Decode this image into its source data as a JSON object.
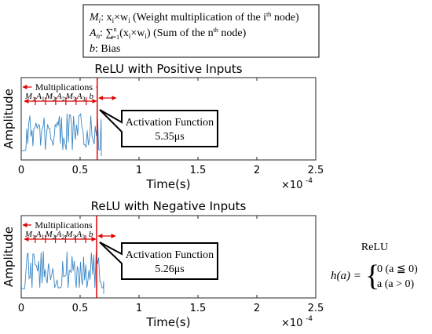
{
  "legend": {
    "line1": {
      "symbol": "M",
      "sub": "i",
      "text": ": x",
      "text_sub": "i",
      "tail": "×w",
      "tail_sub": "i",
      "desc": " (Weight multiplication of the i",
      "sup": "th",
      "end": " node)"
    },
    "line2": {
      "symbol": "A",
      "sub": "n",
      "text": ": ∑",
      "sum_sup": "n",
      "sum_sub": "i=1",
      "expr": "(x",
      "expr_sub": "i",
      "expr2": "×w",
      "expr2_sub": "i",
      "expr3": ")",
      "desc": " (Sum of the n",
      "sup": "th",
      "end": " node)"
    },
    "line3": {
      "symbol": "b",
      "desc": ": Bias"
    }
  },
  "formula": {
    "title": "ReLU",
    "lhs": "h(a) =",
    "case1": "0 (a ≦ 0)",
    "case2": "a (a > 0)"
  },
  "colors": {
    "signal": "#3b87c5",
    "marker": "#e00000",
    "axis": "#262626"
  },
  "chart_data": [
    {
      "type": "line",
      "title": "ReLU with Positive Inputs",
      "xlabel": "Time(s)",
      "ylabel": "Amplitude",
      "xlim": [
        0,
        2.5
      ],
      "x_exponent_label": "×10",
      "x_exponent": "-4",
      "xticks": [
        "0",
        "0.5",
        "1",
        "1.5",
        "2",
        "2.5"
      ],
      "grid": false,
      "activation_end": 0.645,
      "signal_end": 0.68,
      "bracket_label": "Multiplications",
      "segments": [
        "M1",
        "A1",
        "M2",
        "A2",
        "M3",
        "A3",
        "b"
      ],
      "callout": {
        "title": "Activation Function",
        "value": "5.35μs"
      }
    },
    {
      "type": "line",
      "title": "ReLU with Negative Inputs",
      "xlabel": "Time(s)",
      "ylabel": "Amplitude",
      "xlim": [
        0,
        2.5
      ],
      "x_exponent_label": "×10",
      "x_exponent": "-4",
      "xticks": [
        "0",
        "0.5",
        "1",
        "1.5",
        "2",
        "2.5"
      ],
      "grid": false,
      "activation_end": 0.64,
      "signal_end": 0.7,
      "bracket_label": "Multiplications",
      "segments": [
        "M1",
        "A1",
        "M2",
        "A2",
        "M3",
        "A3",
        "b"
      ],
      "callout": {
        "title": "Activation Function",
        "value": "5.26μs"
      }
    }
  ]
}
